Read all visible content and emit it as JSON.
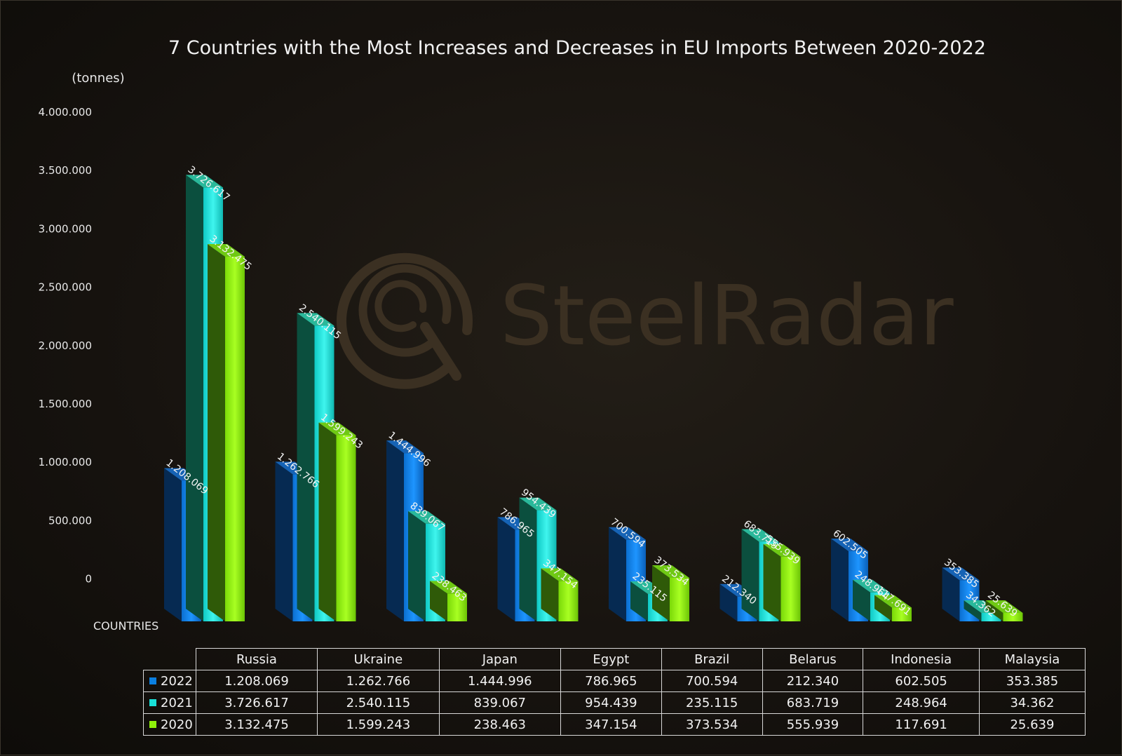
{
  "chart_data": {
    "type": "bar",
    "title": "7 Countries with the Most Increases and Decreases in EU Imports Between 2020-2022",
    "ylabel": "(tonnes)",
    "xlabel": "COUNTRIES",
    "ylim": [
      0,
      4000000
    ],
    "yticks": [
      "4.000.000",
      "3.500.000",
      "3.000.000",
      "2.500.000",
      "2.000.000",
      "1.500.000",
      "1.000.000",
      "500.000",
      "0"
    ],
    "grid": false,
    "legend": "table-below",
    "categories": [
      "Russia",
      "Ukraine",
      "Japan",
      "Egypt",
      "Brazil",
      "Belarus",
      "Indonesia",
      "Malaysia"
    ],
    "series": [
      {
        "name": "2022",
        "color": "#0a7fe0",
        "values": [
          1208069,
          1262766,
          1444996,
          786965,
          700594,
          212340,
          602505,
          353385
        ],
        "labels": [
          "1.208.069",
          "1.262.766",
          "1.444.996",
          "786.965",
          "700.594",
          "212.340",
          "602.505",
          "353.385"
        ]
      },
      {
        "name": "2021",
        "color": "#19e0d8",
        "values": [
          3726617,
          2540115,
          839067,
          954439,
          235115,
          683719,
          248964,
          34362
        ],
        "labels": [
          "3.726.617",
          "2.540.115",
          "839.067",
          "954.439",
          "235.115",
          "683.719",
          "248.964",
          "34.362"
        ]
      },
      {
        "name": "2020",
        "color": "#8ef00a",
        "values": [
          3132475,
          1599243,
          238463,
          347154,
          373534,
          555939,
          117691,
          25639
        ],
        "labels": [
          "3.132.475",
          "1.599.243",
          "238.463",
          "347.154",
          "373.534",
          "555.939",
          "117.691",
          "25.639"
        ]
      }
    ]
  },
  "watermark": {
    "text": "SteelRadar",
    "icon": "radar-logo-icon"
  }
}
